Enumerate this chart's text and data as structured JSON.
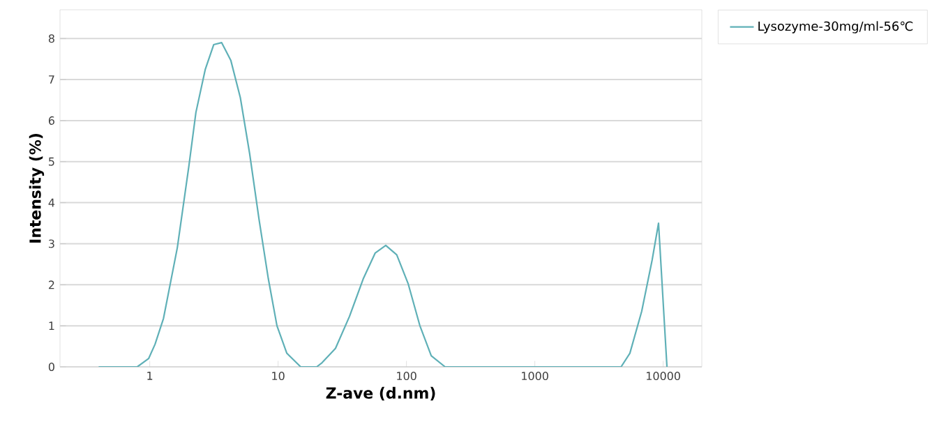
{
  "chart_data": {
    "type": "line",
    "xlabel": "Z-ave (d.nm)",
    "ylabel": "Intensity (%)",
    "log": "x",
    "xlim": [
      0.2,
      20000
    ],
    "ylim": [
      0,
      8.7
    ],
    "xticks": [
      1,
      10,
      100,
      1000,
      10000
    ],
    "yticks": [
      0,
      1,
      2,
      3,
      4,
      5,
      6,
      7,
      8
    ],
    "grid": "y",
    "legend": "top right",
    "marker": "none",
    "line_style": "solid",
    "series": [
      {
        "name": "Lysozyme-30mg/ml-56℃",
        "color": "#5fb0b7",
        "x": [
          0.4,
          0.8,
          0.98,
          1.1,
          1.28,
          1.64,
          2.02,
          2.29,
          2.71,
          3.15,
          3.63,
          4.28,
          5.08,
          6.0,
          7.1,
          8.4,
          9.8,
          11.7,
          15,
          20,
          22,
          28,
          36,
          46,
          57,
          69,
          84,
          103,
          127,
          156,
          200,
          4700,
          5500,
          6800,
          8200,
          9200,
          10700
        ],
        "values": [
          0,
          0,
          0.2,
          0.55,
          1.18,
          2.9,
          4.9,
          6.2,
          7.25,
          7.85,
          7.9,
          7.47,
          6.56,
          5.2,
          3.6,
          2.14,
          1.0,
          0.33,
          0,
          0,
          0.1,
          0.45,
          1.23,
          2.14,
          2.77,
          2.96,
          2.73,
          2.03,
          1.01,
          0.27,
          0,
          0,
          0.33,
          1.35,
          2.6,
          3.5,
          0
        ]
      }
    ]
  }
}
